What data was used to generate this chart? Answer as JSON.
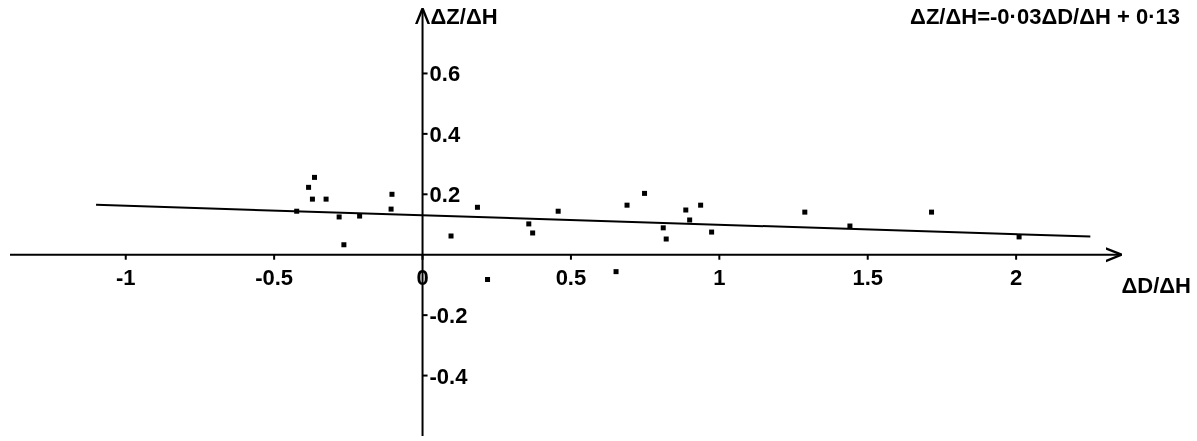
{
  "chart_data": {
    "type": "scatter",
    "xlabel": "ΔD/ΔH",
    "ylabel": "ΔZ/ΔH",
    "annotations": [
      "ΔZ/ΔH=-0·03ΔD/ΔH + 0·13"
    ],
    "xlim": [
      -1.39,
      2.35
    ],
    "ylim": [
      -0.6,
      0.81
    ],
    "xticks": [
      -1,
      -0.5,
      0,
      0.5,
      1,
      1.5,
      2
    ],
    "yticks": [
      0.6,
      0.4,
      0.2,
      -0.2,
      -0.4
    ],
    "grid": false,
    "series": [
      {
        "color": "#000000",
        "marker": "square",
        "x": [
          -0.364,
          -0.384,
          -0.371,
          -0.325,
          -0.424,
          -0.281,
          -0.212,
          -0.265,
          -0.103,
          -0.106,
          0.096,
          0.185,
          0.219,
          0.358,
          0.371,
          0.457,
          0.652,
          0.689,
          0.748,
          0.811,
          0.821,
          0.887,
          0.9,
          0.937,
          0.974,
          1.288,
          1.44,
          1.715,
          2.01
        ],
        "values": [
          0.256,
          0.223,
          0.184,
          0.184,
          0.144,
          0.125,
          0.128,
          0.033,
          0.2,
          0.151,
          0.062,
          0.157,
          -0.082,
          0.102,
          0.072,
          0.144,
          -0.056,
          0.164,
          0.203,
          0.089,
          0.052,
          0.148,
          0.115,
          0.164,
          0.075,
          0.141,
          0.095,
          0.141,
          0.059
        ]
      },
      {
        "type": "line",
        "color": "#000000",
        "x": [
          -1.1,
          2.25
        ],
        "values": [
          0.165,
          0.06
        ]
      }
    ]
  }
}
